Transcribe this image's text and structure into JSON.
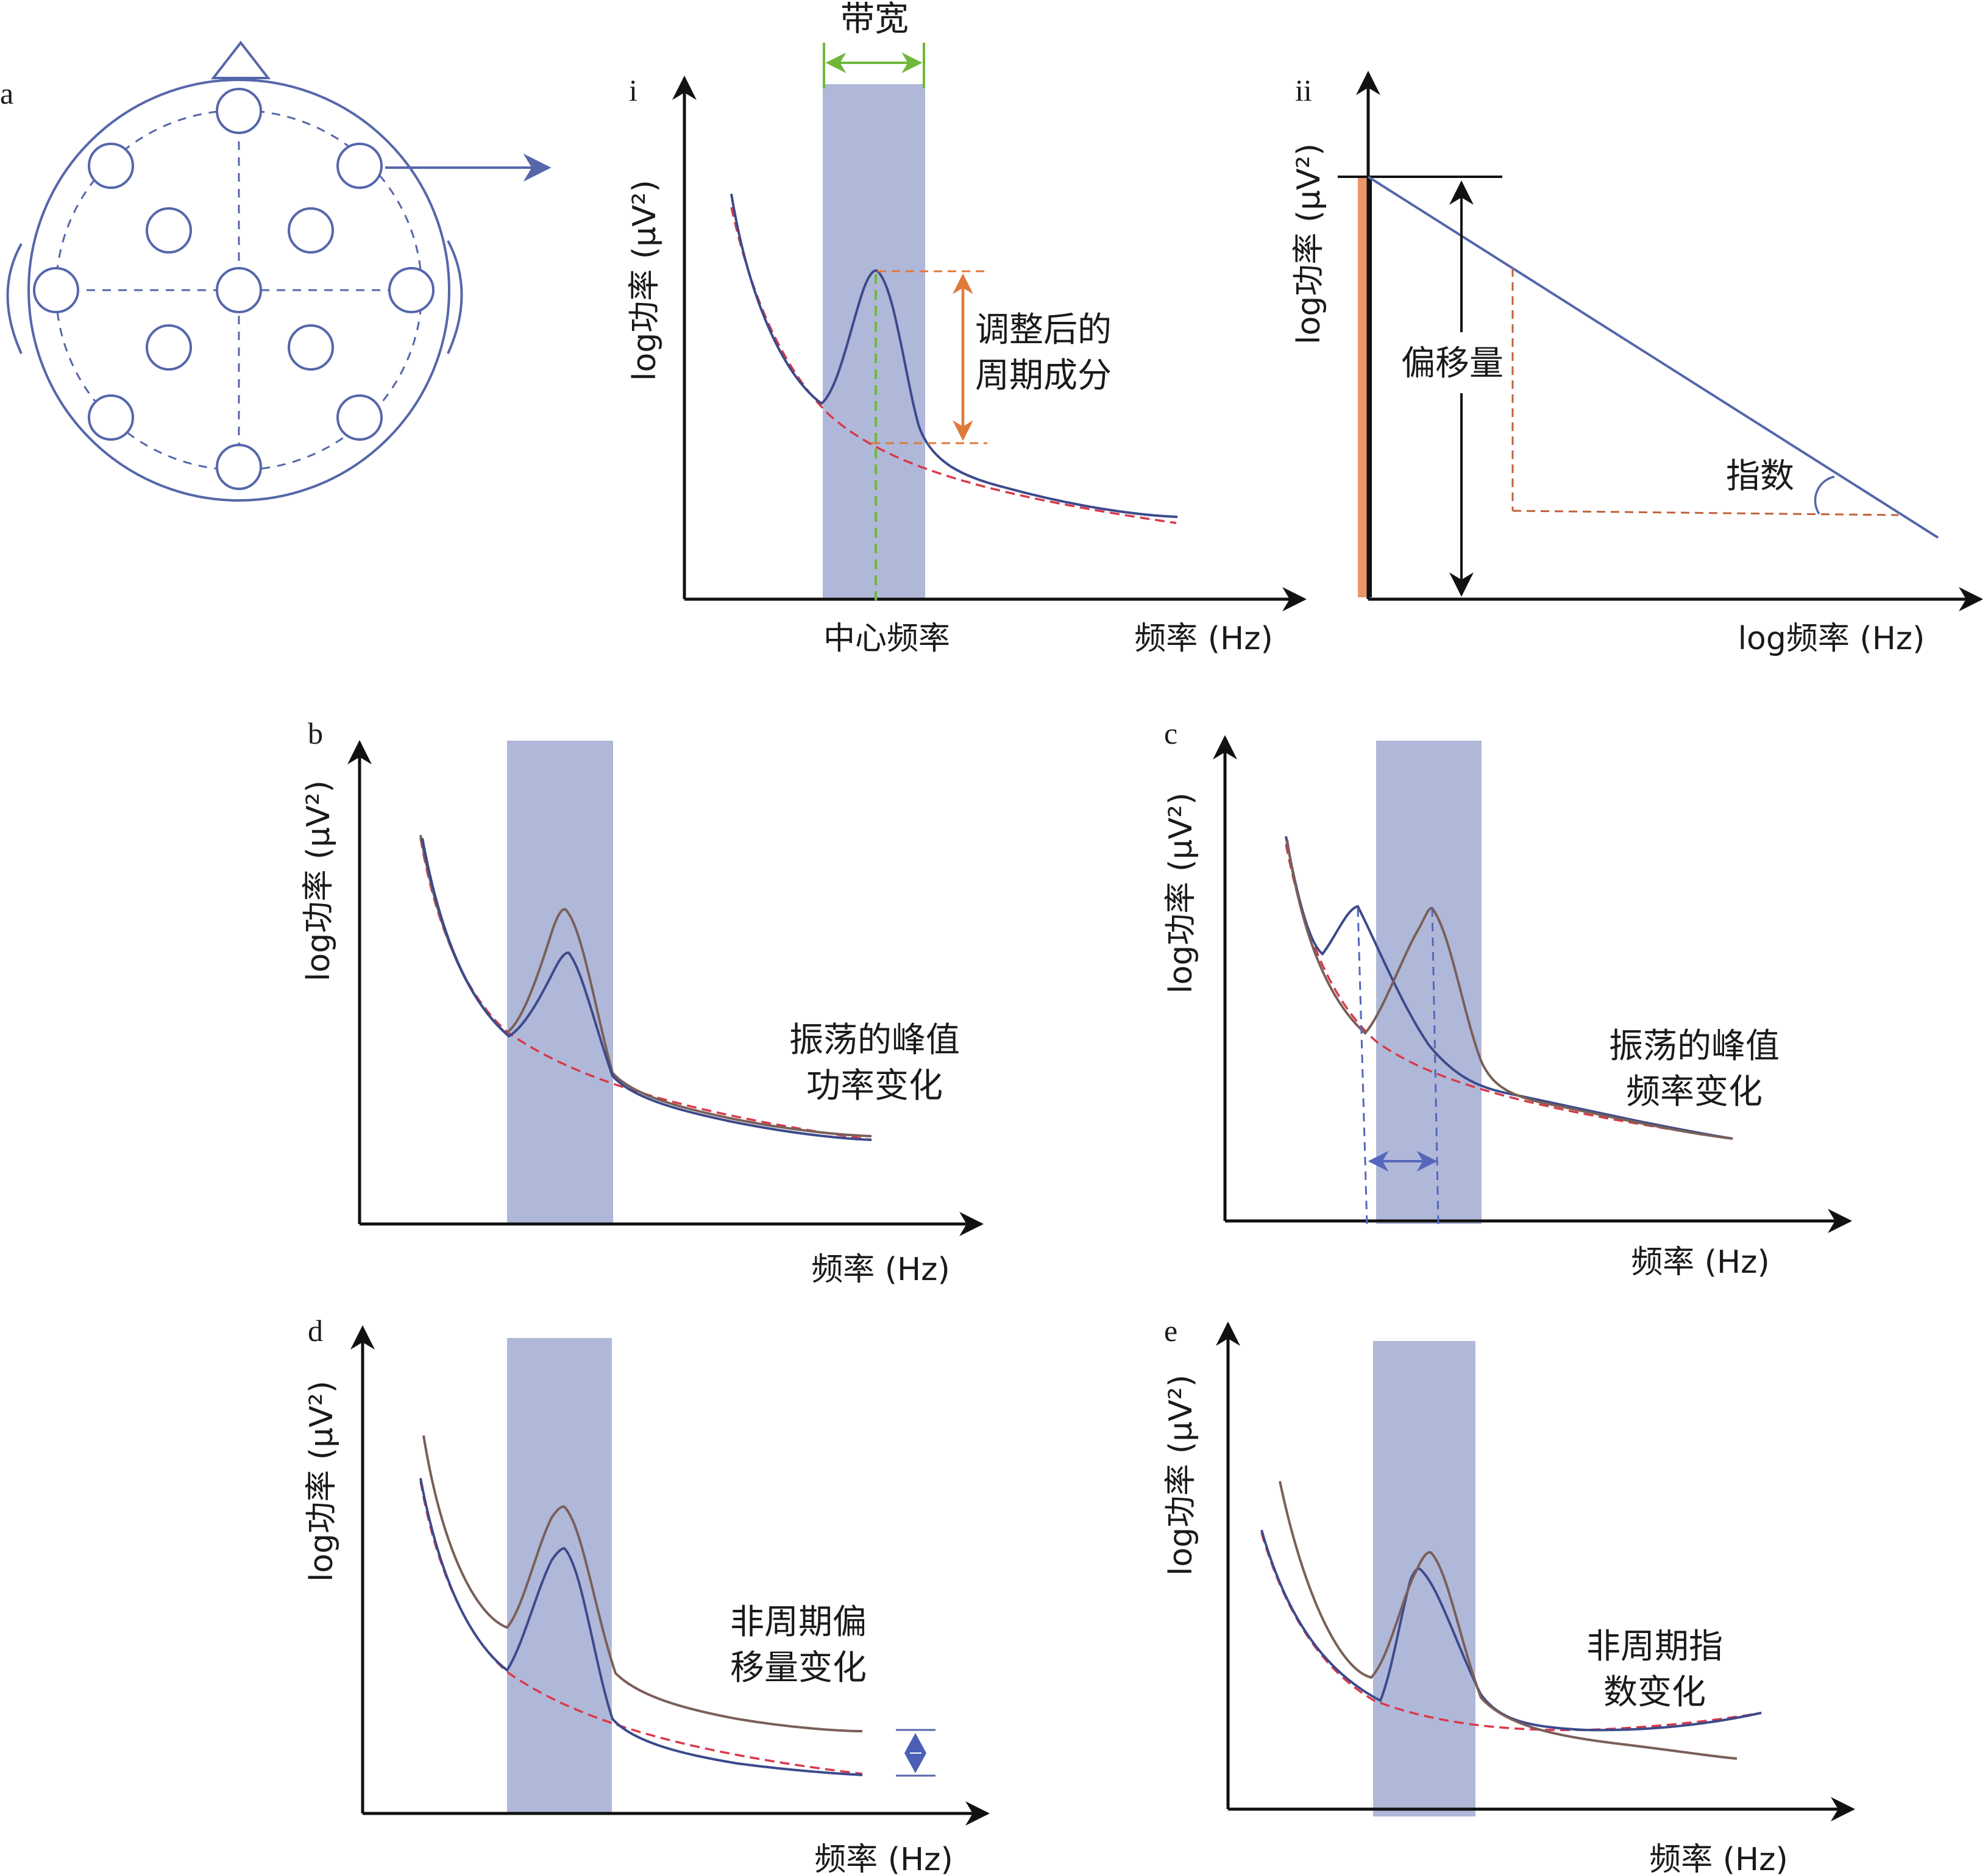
{
  "panels": {
    "a": {
      "label": "a"
    },
    "i": {
      "label": "i",
      "bandwidth": "带宽",
      "adjusted_periodic_line1": "调整后的",
      "adjusted_periodic_line2": "周期成分",
      "center_frequency": "中心频率",
      "xlabel": "频率 (Hz)",
      "ylabel": "log功率 (μV²)"
    },
    "ii": {
      "label": "ii",
      "offset": "偏移量",
      "exponent": "指数",
      "xlabel": "log频率 (Hz)",
      "ylabel": "log功率 (μV²)"
    },
    "b": {
      "label": "b",
      "caption_line1": "振荡的峰值",
      "caption_line2": "功率变化",
      "xlabel": "频率 (Hz)",
      "ylabel": "log功率 (μV²)"
    },
    "c": {
      "label": "c",
      "caption_line1": "振荡的峰值",
      "caption_line2": "频率变化",
      "xlabel": "频率 (Hz)",
      "ylabel": "log功率 (μV²)"
    },
    "d": {
      "label": "d",
      "caption_line1": "非周期偏",
      "caption_line2": "移量变化",
      "xlabel": "频率 (Hz)",
      "ylabel": "log功率 (μV²)"
    },
    "e": {
      "label": "e",
      "caption_line1": "非周期指",
      "caption_line2": "数变化",
      "xlabel": "频率 (Hz)",
      "ylabel": "log功率 (μV²)"
    }
  },
  "colors": {
    "band": "#b0b8d9",
    "blue_line": "#3c4a8c",
    "brown_line": "#7a5f58",
    "aperiodic_dash": "#d9394a",
    "orange": "#e07a3a",
    "green": "#6fb83a",
    "head_outline": "#5566aa",
    "axis": "#111111"
  }
}
